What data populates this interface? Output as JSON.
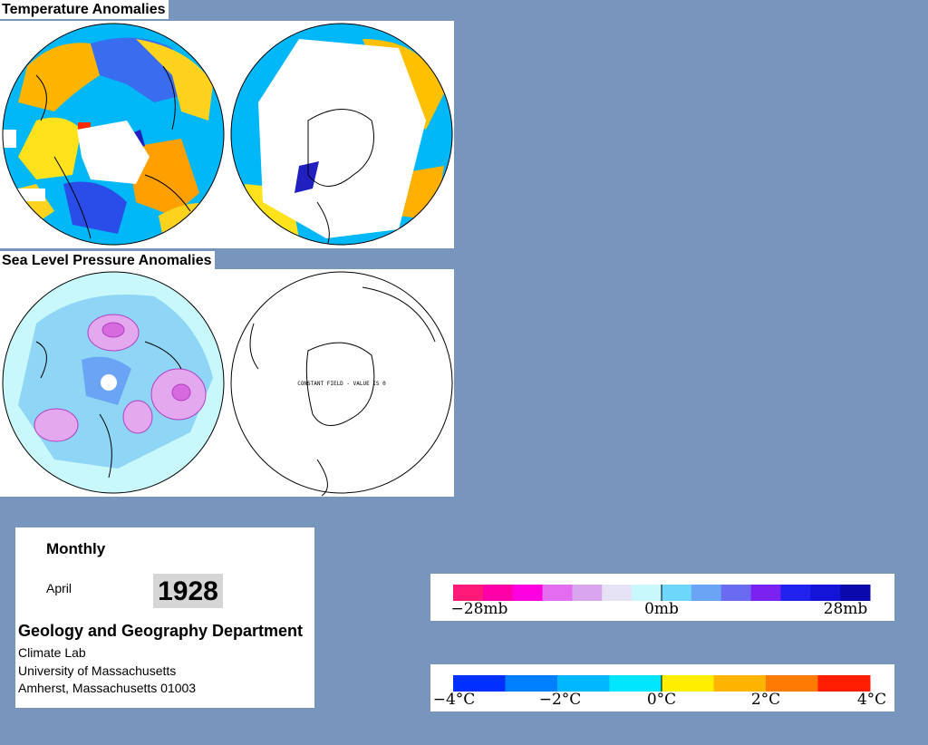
{
  "temperature_section": {
    "title": "Temperature Anomalies"
  },
  "pressure_section": {
    "title": "Sea Level Pressure Anomalies",
    "south_note": "CONSTANT FIELD - VALUE IS 0"
  },
  "info": {
    "period": "Monthly",
    "month": "April",
    "year": "1928",
    "department": "Geology and Geography Department",
    "lab": "Climate Lab",
    "university": "University of Massachusetts",
    "address": "Amherst, Massachusetts 01003"
  },
  "pressure_legend": {
    "labels": [
      "−28mb",
      "0mb",
      "28mb"
    ],
    "colors": [
      "#ff1a7a",
      "#ff00a8",
      "#ff00e0",
      "#e36cf0",
      "#d9a6ee",
      "#e5e3f5",
      "#c8f8fb",
      "#6ed6fb",
      "#6ba4f4",
      "#6b6bf2",
      "#7a22f2",
      "#2222ee",
      "#1414d8",
      "#0a0aac"
    ]
  },
  "temperature_legend": {
    "labels": [
      "−4°C",
      "−2°C",
      "0°C",
      "2°C",
      "4°C"
    ],
    "colors": [
      "#0030ff",
      "#0080ff",
      "#00b8ff",
      "#00e6ff",
      "#ffee00",
      "#ffb400",
      "#ff7a00",
      "#ff1e00"
    ]
  }
}
